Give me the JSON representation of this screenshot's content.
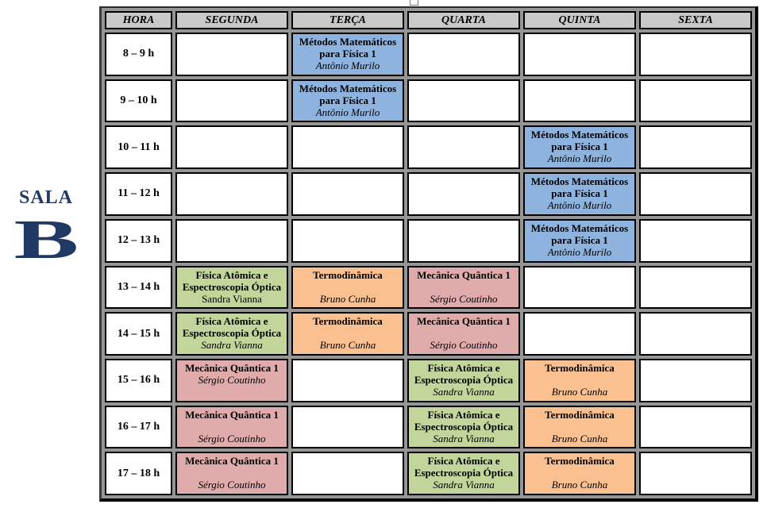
{
  "sala": {
    "label": "SALA",
    "letter": "B",
    "color": "#1F3864"
  },
  "colors": {
    "header_bg": "#C9C9C9",
    "grid_bg": "#969696",
    "cell_border": "#000000",
    "empty_cell_bg": "#FFFFFF",
    "navy_text": "#1F3864"
  },
  "schedule": {
    "headers": [
      "HORA",
      "SEGUNDA",
      "TERÇA",
      "QUARTA",
      "QUINTA",
      "SEXTA"
    ],
    "courses": {
      "mmf": {
        "title_lines": [
          "Métodos Matemáticos",
          "para Física 1"
        ],
        "professor": "Antônio Murilo",
        "color": "#8FB3DF"
      },
      "faeo": {
        "title_lines": [
          "Física Atômica e",
          "Espectroscopia Óptica"
        ],
        "professor": "Sandra Vianna",
        "color": "#C2D69B"
      },
      "termo": {
        "title_lines": [
          "Termodinâmica"
        ],
        "professor": "Bruno Cunha",
        "color": "#FAC090"
      },
      "mq1": {
        "title_lines": [
          "Mecânica Quântica 1"
        ],
        "professor": "Sérgio Coutinho",
        "color": "#E0ABAB"
      }
    },
    "rows": [
      {
        "time": "8 – 9 h",
        "cells": [
          null,
          {
            "course": "mmf"
          },
          null,
          null,
          null
        ]
      },
      {
        "time": "9 – 10 h",
        "cells": [
          null,
          {
            "course": "mmf"
          },
          null,
          null,
          null
        ]
      },
      {
        "time": "10 – 11 h",
        "cells": [
          null,
          null,
          null,
          {
            "course": "mmf"
          },
          null
        ]
      },
      {
        "time": "11 – 12 h",
        "cells": [
          null,
          null,
          null,
          {
            "course": "mmf"
          },
          null
        ]
      },
      {
        "time": "12 – 13 h",
        "cells": [
          null,
          null,
          null,
          {
            "course": "mmf"
          },
          null
        ]
      },
      {
        "time": "13 – 14 h",
        "cells": [
          {
            "course": "faeo",
            "professor_upright": true
          },
          {
            "course": "termo",
            "gap": true
          },
          {
            "course": "mq1",
            "gap": true
          },
          null,
          null
        ]
      },
      {
        "time": "14 – 15 h",
        "cells": [
          {
            "course": "faeo"
          },
          {
            "course": "termo",
            "gap": true
          },
          {
            "course": "mq1",
            "gap": true
          },
          null,
          null
        ]
      },
      {
        "time": "15 – 16 h",
        "cells": [
          {
            "course": "mq1"
          },
          null,
          {
            "course": "faeo"
          },
          {
            "course": "termo",
            "gap": true
          },
          null
        ]
      },
      {
        "time": "16 – 17 h",
        "cells": [
          {
            "course": "mq1",
            "gap": true
          },
          null,
          {
            "course": "faeo"
          },
          {
            "course": "termo",
            "gap": true
          },
          null
        ]
      },
      {
        "time": "17 – 18 h",
        "cells": [
          {
            "course": "mq1",
            "gap": true
          },
          null,
          {
            "course": "faeo"
          },
          {
            "course": "termo",
            "gap": true
          },
          null
        ]
      }
    ]
  }
}
